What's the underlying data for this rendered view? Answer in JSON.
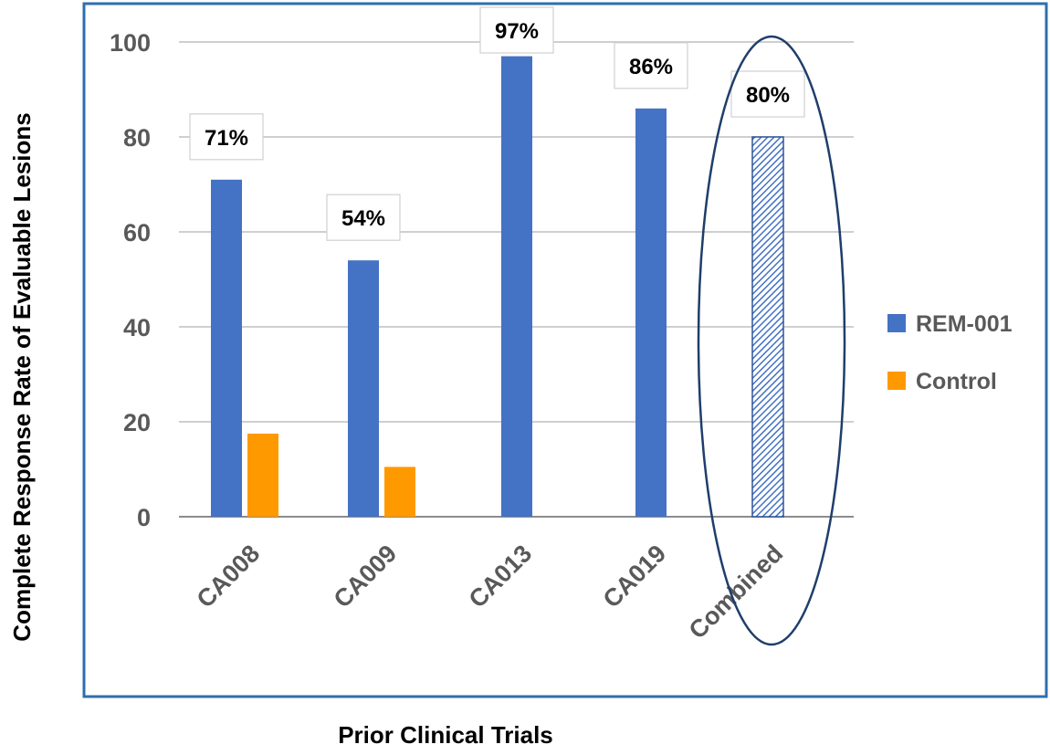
{
  "chart_data": {
    "type": "bar",
    "title": "",
    "xlabel": "Prior Clinical Trials",
    "ylabel": "Complete Response Rate of Evaluable Lesions",
    "ylim": [
      0,
      100
    ],
    "yticks": [
      0,
      20,
      40,
      60,
      80,
      100
    ],
    "grid": true,
    "legend_position": "right",
    "categories": [
      "CA008",
      "CA009",
      "CA013",
      "CA019",
      "Combined"
    ],
    "series": [
      {
        "name": "REM-001",
        "color": "#4472C4",
        "values": [
          71,
          54,
          97,
          86,
          80
        ],
        "data_labels": [
          "71%",
          "54%",
          "97%",
          "86%",
          "80%"
        ]
      },
      {
        "name": "Control",
        "color": "#FF9900",
        "values": [
          17.5,
          10.5,
          null,
          null,
          null
        ]
      }
    ],
    "annotations": [
      {
        "type": "ellipse-highlight",
        "target_category": "Combined"
      },
      {
        "type": "hatched-bar",
        "target_category": "Combined",
        "color": "#4472C4"
      }
    ]
  }
}
